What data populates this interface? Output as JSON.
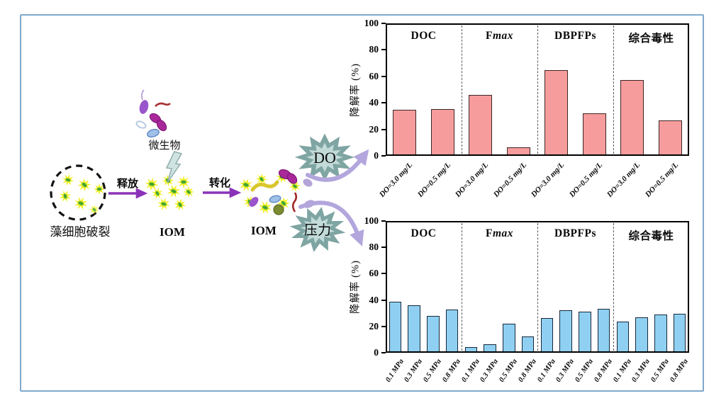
{
  "figure": {
    "border_color": "#7fa8cc"
  },
  "diagram": {
    "algae_label": "藻细胞破裂",
    "release_arrow_label": "释放",
    "iom1_label": "IOM",
    "microbes_label": "微生物",
    "transform_arrow_label": "转化",
    "iom2_label": "IOM",
    "do_burst_label": "DO",
    "pressure_burst_label": "压力",
    "colors": {
      "cell_yellow": "#f2ef2d",
      "cell_green": "#44a832",
      "purple_arrow": "#8a33b8",
      "lavender_arrow": "#b3a6dd",
      "burst_fill": "#c2dbd9",
      "burst_stroke": "#7fa5a3"
    }
  },
  "chart_data": [
    {
      "type": "bar",
      "title": "",
      "xlabel": "",
      "ylabel": "降解率 (%)",
      "ylim": [
        0,
        100
      ],
      "yticks": [
        0,
        20,
        40,
        60,
        80,
        100
      ],
      "grid": false,
      "legend": null,
      "groups": [
        {
          "label": "DOC"
        },
        {
          "label": "Fmax",
          "roman": "F",
          "italic": "max"
        },
        {
          "label": "DBPFPs"
        },
        {
          "label": "综合毒性"
        }
      ],
      "categories": [
        "DO=3.0 mg/L",
        "DO=0.5 mg/L",
        "DO=3.0 mg/L",
        "DO=0.5 mg/L",
        "DO=3.0 mg/L",
        "DO=0.5 mg/L",
        "DO=3.0 mg/L",
        "DO=0.5 mg/L"
      ],
      "values": [
        35,
        35.5,
        46,
        6.5,
        65,
        32,
        57,
        26.5
      ],
      "bar_color": "#f79c9c",
      "bar_border": "#3d2626"
    },
    {
      "type": "bar",
      "title": "",
      "xlabel": "",
      "ylabel": "降解率 (%)",
      "ylim": [
        0,
        100
      ],
      "yticks": [
        0,
        20,
        40,
        60,
        80,
        100
      ],
      "grid": false,
      "legend": null,
      "groups": [
        {
          "label": "DOC"
        },
        {
          "label": "Fmax",
          "roman": "F",
          "italic": "max"
        },
        {
          "label": "DBPFPs"
        },
        {
          "label": "综合毒性"
        }
      ],
      "categories": [
        "0.1 MPa",
        "0.3 MPa",
        "0.5 MPa",
        "0.8 MPa",
        "0.1 MPa",
        "0.3 MPa",
        "0.5 MPa",
        "0.8 MPa",
        "0.1 MPa",
        "0.3 MPa",
        "0.5 MPa",
        "0.8 MPa",
        "0.1 MPa",
        "0.3 MPa",
        "0.5 MPa",
        "0.8 MPa"
      ],
      "values": [
        38.5,
        36,
        28,
        33,
        4.5,
        6.5,
        22,
        12.5,
        26.5,
        32.5,
        31,
        33.5,
        23.5,
        27,
        29,
        29.5
      ],
      "bar_color": "#8fd0f2",
      "bar_border": "#18283a"
    }
  ]
}
